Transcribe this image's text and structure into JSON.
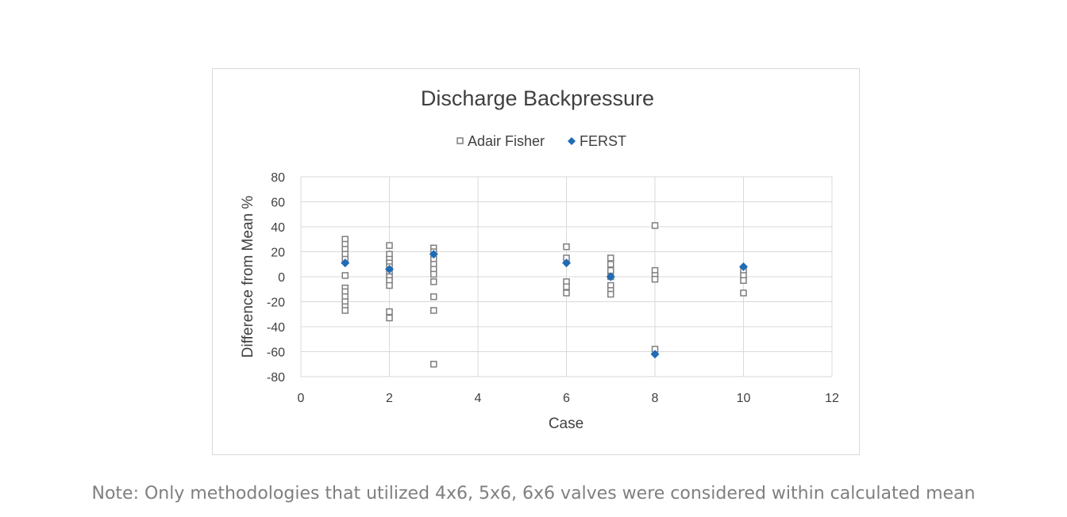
{
  "note": "Note: Only methodologies that utilized 4x6, 5x6, 6x6 valves were considered within calculated mean",
  "chart_data": {
    "type": "scatter",
    "title": "Discharge Backpressure",
    "xlabel": "Case",
    "ylabel": "Difference from Mean %",
    "xlim": [
      0,
      12
    ],
    "ylim": [
      -80,
      80
    ],
    "xticks": [
      0,
      2,
      4,
      6,
      8,
      10,
      12
    ],
    "yticks": [
      80,
      60,
      40,
      20,
      0,
      -20,
      -40,
      -60,
      -80
    ],
    "grid": true,
    "legend_position": "top",
    "series": [
      {
        "name": "Adair Fisher",
        "marker": "hollow-square",
        "color": "#7f7f7f",
        "points": [
          [
            1,
            30
          ],
          [
            1,
            26
          ],
          [
            1,
            22
          ],
          [
            1,
            18
          ],
          [
            1,
            14
          ],
          [
            1,
            1
          ],
          [
            1,
            -9
          ],
          [
            1,
            -12
          ],
          [
            1,
            -16
          ],
          [
            1,
            -20
          ],
          [
            1,
            -24
          ],
          [
            1,
            -27
          ],
          [
            2,
            25
          ],
          [
            2,
            18
          ],
          [
            2,
            14
          ],
          [
            2,
            11
          ],
          [
            2,
            8
          ],
          [
            2,
            4
          ],
          [
            2,
            0
          ],
          [
            2,
            -3
          ],
          [
            2,
            -7
          ],
          [
            2,
            -28
          ],
          [
            2,
            -33
          ],
          [
            3,
            23
          ],
          [
            3,
            20
          ],
          [
            3,
            14
          ],
          [
            3,
            10
          ],
          [
            3,
            6
          ],
          [
            3,
            2
          ],
          [
            3,
            -4
          ],
          [
            3,
            -16
          ],
          [
            3,
            -27
          ],
          [
            3,
            -70
          ],
          [
            6,
            24
          ],
          [
            6,
            15
          ],
          [
            6,
            -4
          ],
          [
            6,
            -8
          ],
          [
            6,
            -13
          ],
          [
            7,
            15
          ],
          [
            7,
            10
          ],
          [
            7,
            5
          ],
          [
            7,
            0
          ],
          [
            7,
            -7
          ],
          [
            7,
            -11
          ],
          [
            7,
            -14
          ],
          [
            8,
            41
          ],
          [
            8,
            5
          ],
          [
            8,
            1
          ],
          [
            8,
            -2
          ],
          [
            8,
            -58
          ],
          [
            10,
            5
          ],
          [
            10,
            1
          ],
          [
            10,
            -3
          ],
          [
            10,
            -13
          ]
        ]
      },
      {
        "name": "FERST",
        "marker": "diamond",
        "color": "#1f6bb5",
        "points": [
          [
            1,
            11
          ],
          [
            2,
            6
          ],
          [
            3,
            18
          ],
          [
            6,
            11
          ],
          [
            7,
            0
          ],
          [
            8,
            -62
          ],
          [
            10,
            8
          ]
        ]
      }
    ]
  }
}
